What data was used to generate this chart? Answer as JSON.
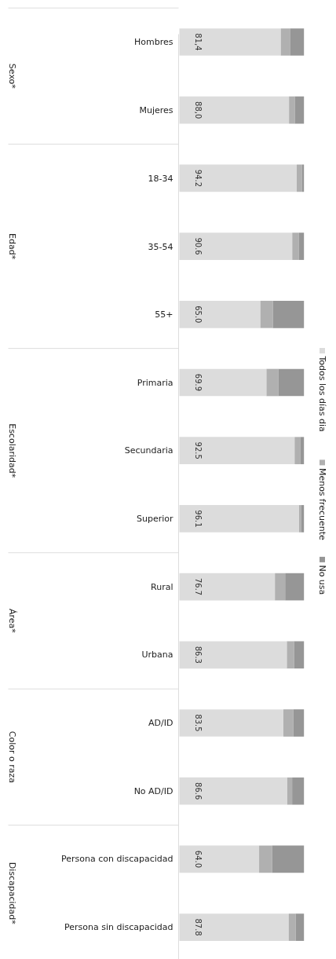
{
  "chart_data": {
    "type": "bar",
    "orientation": "horizontal",
    "stacked": true,
    "legend": "right",
    "grid": false,
    "categories": [
      "Hombres",
      "Mujeres",
      "18-34",
      "35-54",
      "55+",
      "Primaria",
      "Secundaria",
      "Superior",
      "Rural",
      "Urbana",
      "AD/ID",
      "No AD/ID",
      "Persona con discapacidad",
      "Persona sin discapacidad"
    ],
    "annotations": [
      "Sexo*",
      "Edad*",
      "Escolaridad*",
      "Área*",
      "Color o raza",
      "Discapacidad*"
    ],
    "series": [
      {
        "name": "Todos los días dia",
        "color": "#dcdcdc",
        "values": [
          81.4,
          88.0,
          94.2,
          90.6,
          65.0,
          69.9,
          92.5,
          96.1,
          76.7,
          86.3,
          83.5,
          86.6,
          64.0,
          87.8
        ],
        "value_labels": [
          "81,4",
          "88,0",
          "94.2",
          "90.6",
          "65.0",
          "69.9",
          "92.5",
          "96.1",
          "76.7",
          "86.3",
          "83.5",
          "86.6",
          "64.0",
          "87.8"
        ]
      },
      {
        "name": "Menos frecuente",
        "color": "#b0b0b0",
        "values": [
          7.4,
          4.6,
          4.1,
          5.2,
          10.0,
          9.5,
          4.5,
          1.8,
          8.2,
          5.7,
          7.9,
          3.9,
          10.4,
          5.5
        ]
      },
      {
        "name": "No usa",
        "color": "#969696",
        "values": [
          11.2,
          7.4,
          1.7,
          4.2,
          25.0,
          20.6,
          3.0,
          2.1,
          15.1,
          8.0,
          8.6,
          9.5,
          25.6,
          6.7
        ]
      }
    ]
  }
}
